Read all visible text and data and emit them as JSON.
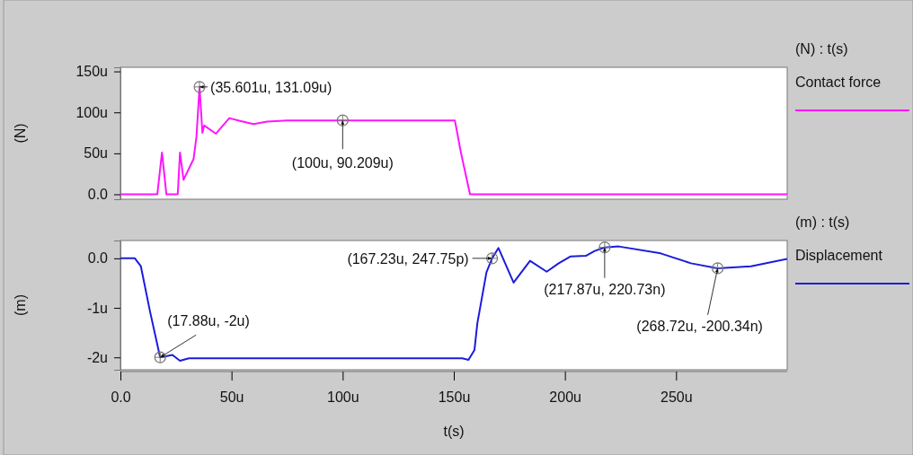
{
  "chart_data": [
    {
      "type": "line",
      "ylabel": "(N)",
      "legend_title": "(N) : t(s)",
      "legend": "top right",
      "grid": false,
      "tick_labels": "y",
      "xlim": [
        0,
        300
      ],
      "ylim": [
        -6,
        155
      ],
      "yticks": [
        {
          "value": 0,
          "label": "0.0"
        },
        {
          "value": 50,
          "label": "50u"
        },
        {
          "value": 100,
          "label": "100u"
        },
        {
          "value": 150,
          "label": "150u"
        }
      ],
      "series": [
        {
          "name": "Contact force",
          "color": "#ff14ff",
          "x": [
            0,
            16.6,
            18.7,
            20.7,
            25.8,
            26.8,
            28.4,
            32.9,
            34.2,
            35.601,
            36.9,
            37.7,
            43,
            49,
            53.8,
            59.9,
            66,
            75,
            100,
            150.5,
            153.2,
            157.3,
            300
          ],
          "values": [
            0,
            0,
            51,
            0,
            0,
            51,
            17.7,
            43,
            70,
            131.09,
            75,
            84,
            74,
            93,
            89.5,
            85.8,
            88.7,
            90,
            90.209,
            90,
            51,
            0,
            0
          ]
        }
      ],
      "annotations": [
        {
          "text": "(35.601u, 131.09u)",
          "x": 35.601,
          "y": 131.09
        },
        {
          "text": "(100u, 90.209u)",
          "x": 100,
          "y": 90.209
        }
      ]
    },
    {
      "type": "line",
      "xlabel": "t(s)",
      "ylabel": "(m)",
      "legend_title": "(m) : t(s)",
      "legend": "top right",
      "grid": false,
      "xlim": [
        0,
        300
      ],
      "ylim": [
        -2.25,
        0.36
      ],
      "xticks": [
        {
          "value": 0,
          "label": "0.0"
        },
        {
          "value": 50,
          "label": "50u"
        },
        {
          "value": 100,
          "label": "100u"
        },
        {
          "value": 150,
          "label": "150u"
        },
        {
          "value": 200,
          "label": "200u"
        },
        {
          "value": 250,
          "label": "250u"
        }
      ],
      "yticks": [
        {
          "value": -2,
          "label": "-2u"
        },
        {
          "value": -1,
          "label": "-1u"
        },
        {
          "value": 0,
          "label": "0.0"
        }
      ],
      "series": [
        {
          "name": "Displacement",
          "color": "#1c1cdc",
          "x": [
            0,
            6.5,
            9.2,
            13.3,
            17.88,
            23.4,
            26.8,
            30.8,
            153.8,
            156.6,
            159.3,
            160.6,
            164.7,
            167.23,
            170.1,
            176.9,
            184.3,
            191.8,
            197.2,
            202.6,
            209.4,
            213.4,
            217.87,
            224.2,
            243.1,
            256.7,
            268.72,
            283.7,
            300
          ],
          "values": [
            0,
            0,
            -0.16,
            -1.07,
            -2,
            -1.95,
            -2.07,
            -2.02,
            -2.02,
            -2.05,
            -1.85,
            -1.31,
            -0.28,
            0,
            0.21,
            -0.49,
            -0.05,
            -0.27,
            -0.1,
            0.04,
            0.05,
            0.15,
            0.22073,
            0.24,
            0.1,
            -0.1,
            -0.20034,
            -0.16,
            -0.01
          ]
        }
      ],
      "annotations": [
        {
          "text": "(17.88u, -2u)",
          "x": 17.88,
          "y": -2
        },
        {
          "text": "(167.23u, 247.75p)",
          "x": 167.23,
          "y": 0.00024775
        },
        {
          "text": "(217.87u, 220.73n)",
          "x": 217.87,
          "y": 0.22073
        },
        {
          "text": "(268.72u, -200.34n)",
          "x": 268.72,
          "y": -0.20034
        }
      ]
    }
  ]
}
